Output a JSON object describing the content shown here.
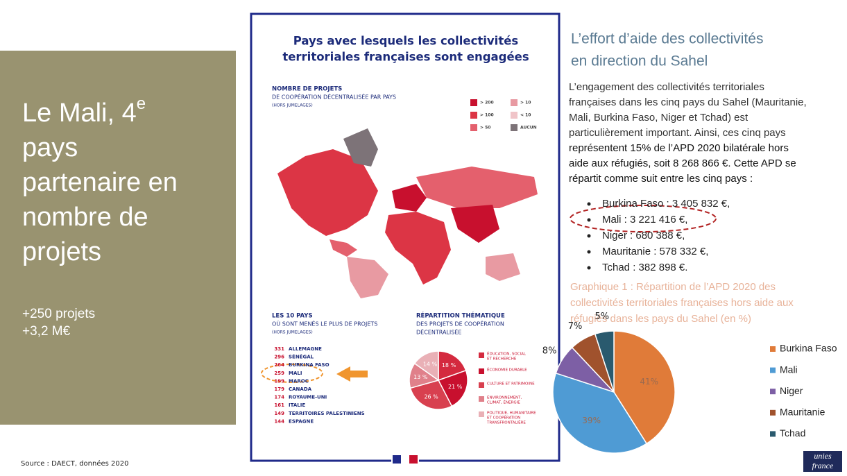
{
  "left_panel": {
    "title_lines": [
      "Le Mali, 4",
      "pays",
      "partenaire en",
      "nombre de",
      "projets"
    ],
    "title_sup": "e",
    "stats": [
      "+250 projets",
      "+3,2 M€"
    ]
  },
  "source": "Source : DAECT, données 2020",
  "poster": {
    "title": [
      "Pays avec lesquels les collectivités",
      "territoriales françaises sont engagées"
    ],
    "map_section": {
      "heading": "NOMBRE DE PROJETS",
      "subheading": "DE COOPÉRATION DÉCENTRALISÉE PAR PAYS",
      "note": "(HORS JUMELAGES)",
      "legend": [
        {
          "label": "> 200",
          "color": "#c8102e"
        },
        {
          "label": "> 100",
          "color": "#dc3545"
        },
        {
          "label": "> 50",
          "color": "#e4606d"
        },
        {
          "label": "> 10",
          "color": "#e89aa2"
        },
        {
          "label": "< 10",
          "color": "#f0c4c8"
        },
        {
          "label": "AUCUN",
          "color": "#7d7378"
        }
      ]
    },
    "top_countries": {
      "heading": "LES 10 PAYS",
      "subheading": "OÙ SONT MENÉS LE PLUS DE PROJETS",
      "note": "(HORS JUMELAGES)",
      "rows": [
        {
          "value": 331,
          "name": "ALLEMAGNE"
        },
        {
          "value": 296,
          "name": "SÉNÉGAL"
        },
        {
          "value": 264,
          "name": "BURKINA FASO"
        },
        {
          "value": 259,
          "name": "MALI"
        },
        {
          "value": 199,
          "name": "MAROC"
        },
        {
          "value": 179,
          "name": "CANADA"
        },
        {
          "value": 174,
          "name": "ROYAUME-UNI"
        },
        {
          "value": 161,
          "name": "ITALIE"
        },
        {
          "value": 149,
          "name": "TERRITOIRES PALESTINIENS"
        },
        {
          "value": 144,
          "name": "ESPAGNE"
        }
      ]
    },
    "themes": {
      "heading": "RÉPARTITION THÉMATIQUE",
      "subheading": [
        "DES PROJETS DE COOPÉRATION",
        "DÉCENTRALISÉE"
      ],
      "chart": {
        "type": "pie",
        "categories": [
          [
            "ÉDUCATION, SOCIAL",
            "ET RECHERCHE"
          ],
          [
            "ÉCONOMIE DURABLE"
          ],
          [
            "CULTURE ET PATRIMOINE"
          ],
          [
            "ENVIRONNEMENT,",
            "CLIMAT, ÉNERGIE"
          ],
          [
            "POLITIQUE, HUMANITAIRE",
            "ET COOPÉRATION",
            "TRANSFRONTALIÈRE"
          ]
        ],
        "values": [
          18,
          21,
          26,
          13,
          14
        ],
        "value_labels": [
          "18 %",
          "21 %",
          "26 %",
          "13 %",
          "14 %"
        ],
        "colors": [
          "#d42a3f",
          "#c8102e",
          "#d8404f",
          "#e0808a",
          "#e9b0b6"
        ]
      }
    }
  },
  "article": {
    "title": [
      "L’effort d’aide des collectivités",
      "en direction du Sahel"
    ],
    "paragraph": [
      "L’engagement des collectivités territoriales",
      "françaises dans les cinq pays du Sahel (Mauritanie,",
      "Mali, Burkina Faso, Niger et Tchad) est",
      "particulièrement important. Ainsi, ces cinq pays",
      "représentent 15% de l’APD 2020 bilatérale hors",
      "aide aux réfugiés, soit 8 268 866 €. Cette APD se",
      "répartit comme suit entre les cinq pays :"
    ],
    "bullets": [
      "Burkina Faso : 3 405 832 €,",
      "Mali : 3 221 416 €,",
      "Niger : 680 388 €,",
      "Mauritanie : 578 332 €,",
      "Tchad : 382 898 €."
    ],
    "caption": [
      "Graphique 1 : Répartition de l’APD 2020 des",
      "collectivités territoriales françaises hors aide aux",
      "réfugiés dans les pays du Sahel (en %)"
    ],
    "chart": {
      "type": "pie",
      "categories": [
        "Burkina Faso",
        "Mali",
        "Niger",
        "Mauritanie",
        "Tchad"
      ],
      "values": [
        41,
        39,
        8,
        7,
        5
      ],
      "value_labels": [
        "41%",
        "39%",
        "8%",
        "7%",
        "5%"
      ],
      "colors": [
        "#e07b39",
        "#4f9bd4",
        "#7d5fa5",
        "#a0522d",
        "#2a5a6e"
      ]
    }
  },
  "logo": [
    "unies",
    "france"
  ]
}
